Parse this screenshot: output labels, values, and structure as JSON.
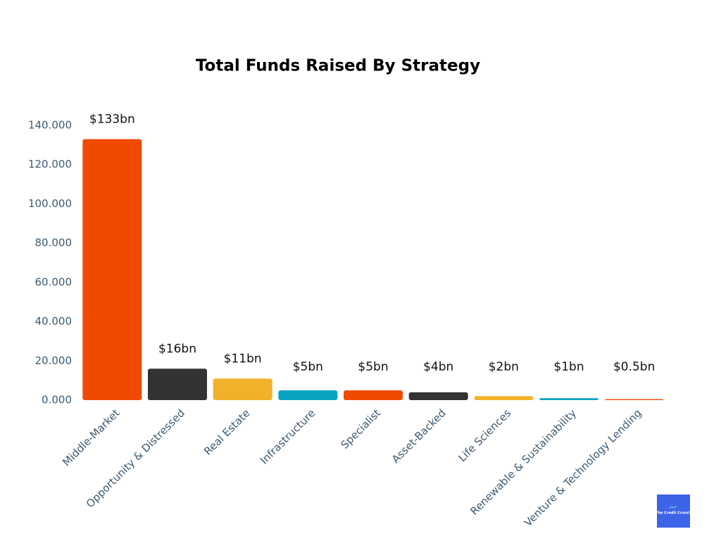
{
  "chart_data": {
    "type": "bar",
    "title": "Total Funds  Raised By Strategy",
    "categories": [
      "Middle-Market",
      "Opportunity & Distressed",
      "Real Estate",
      "Infrastructure",
      "Specialist",
      "Asset-Backed",
      "Life Sciences",
      "Renewable & Sustainability",
      "Venture & Technology Lending"
    ],
    "values": [
      133,
      16,
      11,
      5,
      5,
      4,
      2,
      1,
      0.5
    ],
    "value_labels": [
      "$133bn",
      "$16bn",
      "$11bn",
      "$5bn",
      "$5bn",
      "$4bn",
      "$2bn",
      "$1bn",
      "$0.5bn"
    ],
    "colors": [
      "#f04a00",
      "#333333",
      "#f2b12a",
      "#0aa3c2",
      "#f04a00",
      "#333333",
      "#f2b12a",
      "#0aa3c2",
      "#f04a00"
    ],
    "ylim": [
      0,
      140
    ],
    "yticks": [
      {
        "value": 0,
        "label": "0.000"
      },
      {
        "value": 20,
        "label": "20.000"
      },
      {
        "value": 40,
        "label": "40.000"
      },
      {
        "value": 60,
        "label": "60.000"
      },
      {
        "value": 80,
        "label": "80.000"
      },
      {
        "value": 100,
        "label": "100.000"
      },
      {
        "value": 120,
        "label": "120.000"
      },
      {
        "value": 140,
        "label": "140.000"
      }
    ],
    "grid": false,
    "logo": "The Credit Crunch"
  }
}
